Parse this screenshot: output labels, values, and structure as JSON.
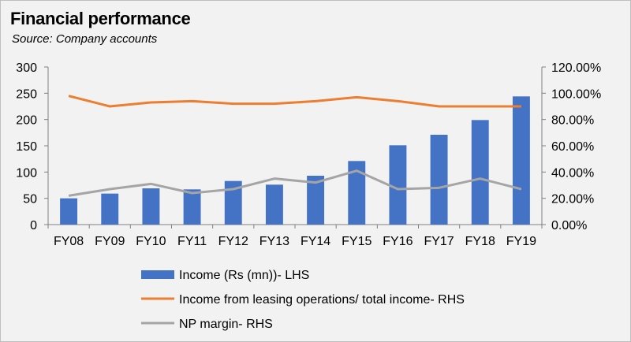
{
  "chart_data": {
    "type": "bar",
    "title": "Financial performance",
    "subtitle": "Source: Company accounts",
    "categories": [
      "FY08",
      "FY09",
      "FY10",
      "FY11",
      "FY12",
      "FY13",
      "FY14",
      "FY15",
      "FY16",
      "FY17",
      "FY18",
      "FY19"
    ],
    "y_left": {
      "min": 0,
      "max": 300,
      "ticks": [
        0,
        50,
        100,
        150,
        200,
        250,
        300
      ]
    },
    "y_right": {
      "min": 0,
      "max": 1.2,
      "ticks": [
        0,
        0.2,
        0.4,
        0.6,
        0.8,
        1.0,
        1.2
      ],
      "tick_labels": [
        "0.00%",
        "20.00%",
        "40.00%",
        "60.00%",
        "80.00%",
        "100.00%",
        "120.00%"
      ]
    },
    "grid": false,
    "legend_position": "bottom",
    "series": [
      {
        "name": "Income (Rs (mn))- LHS",
        "type": "bar",
        "axis": "left",
        "color": "#4472c4",
        "values": [
          50,
          59,
          69,
          67,
          83,
          76,
          93,
          121,
          151,
          171,
          199,
          244
        ]
      },
      {
        "name": "Income from leasing operations/ total income- RHS",
        "type": "line",
        "axis": "right",
        "color": "#ed7d31",
        "values": [
          0.98,
          0.9,
          0.93,
          0.94,
          0.92,
          0.92,
          0.94,
          0.97,
          0.94,
          0.9,
          0.9,
          0.9
        ]
      },
      {
        "name": "NP margin- RHS",
        "type": "line",
        "axis": "right",
        "color": "#a5a5a5",
        "values": [
          0.22,
          0.27,
          0.31,
          0.24,
          0.27,
          0.35,
          0.32,
          0.41,
          0.27,
          0.28,
          0.35,
          0.27
        ]
      }
    ]
  }
}
